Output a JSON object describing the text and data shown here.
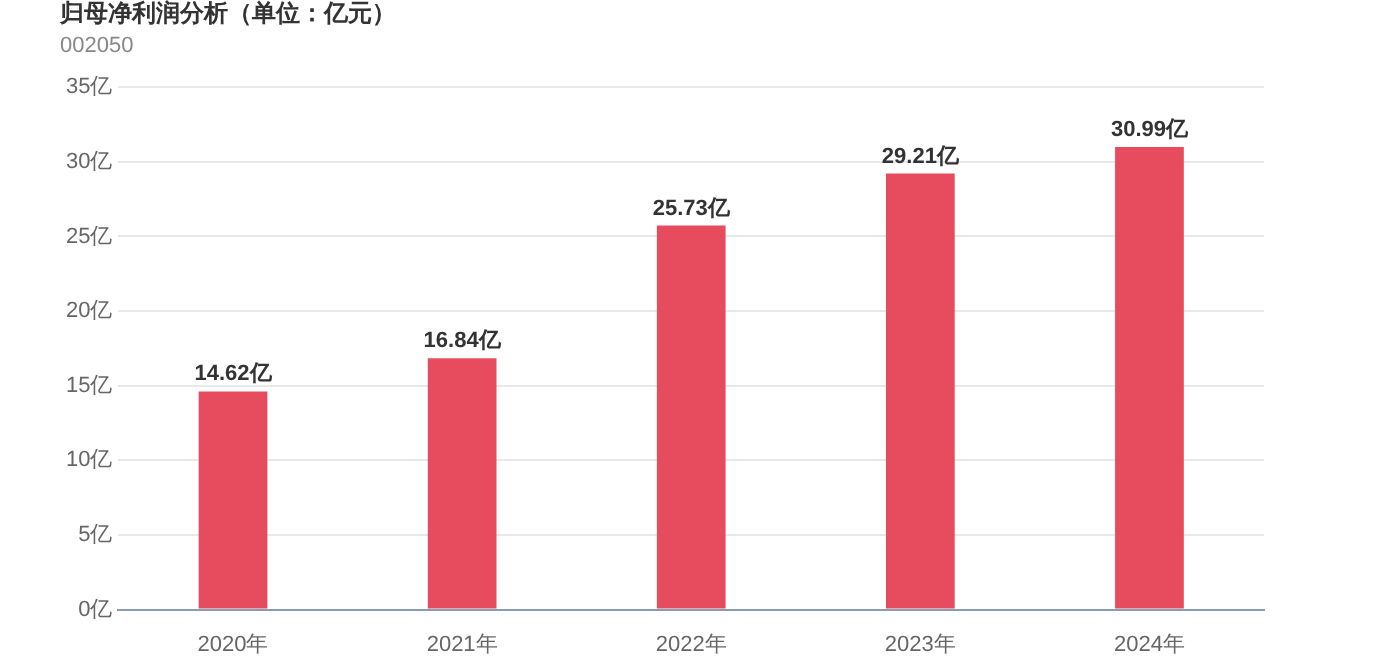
{
  "chart_data": {
    "type": "bar",
    "title": "归母净利润分析（单位：亿元）",
    "subtitle": "002050",
    "categories": [
      "2020年",
      "2021年",
      "2022年",
      "2023年",
      "2024年"
    ],
    "values": [
      14.62,
      16.84,
      25.73,
      29.21,
      30.99
    ],
    "value_labels": [
      "14.62亿",
      "16.84亿",
      "25.73亿",
      "29.21亿",
      "30.99亿"
    ],
    "color": "#e64c5e",
    "ylim": [
      0,
      35
    ],
    "yticks": [
      {
        "value": 0,
        "label": "0亿"
      },
      {
        "value": 5,
        "label": "5亿"
      },
      {
        "value": 10,
        "label": "10亿"
      },
      {
        "value": 15,
        "label": "15亿"
      },
      {
        "value": 20,
        "label": "20亿"
      },
      {
        "value": 25,
        "label": "25亿"
      },
      {
        "value": 30,
        "label": "30亿"
      },
      {
        "value": 35,
        "label": "35亿"
      }
    ],
    "grid": "y",
    "legend": false
  }
}
